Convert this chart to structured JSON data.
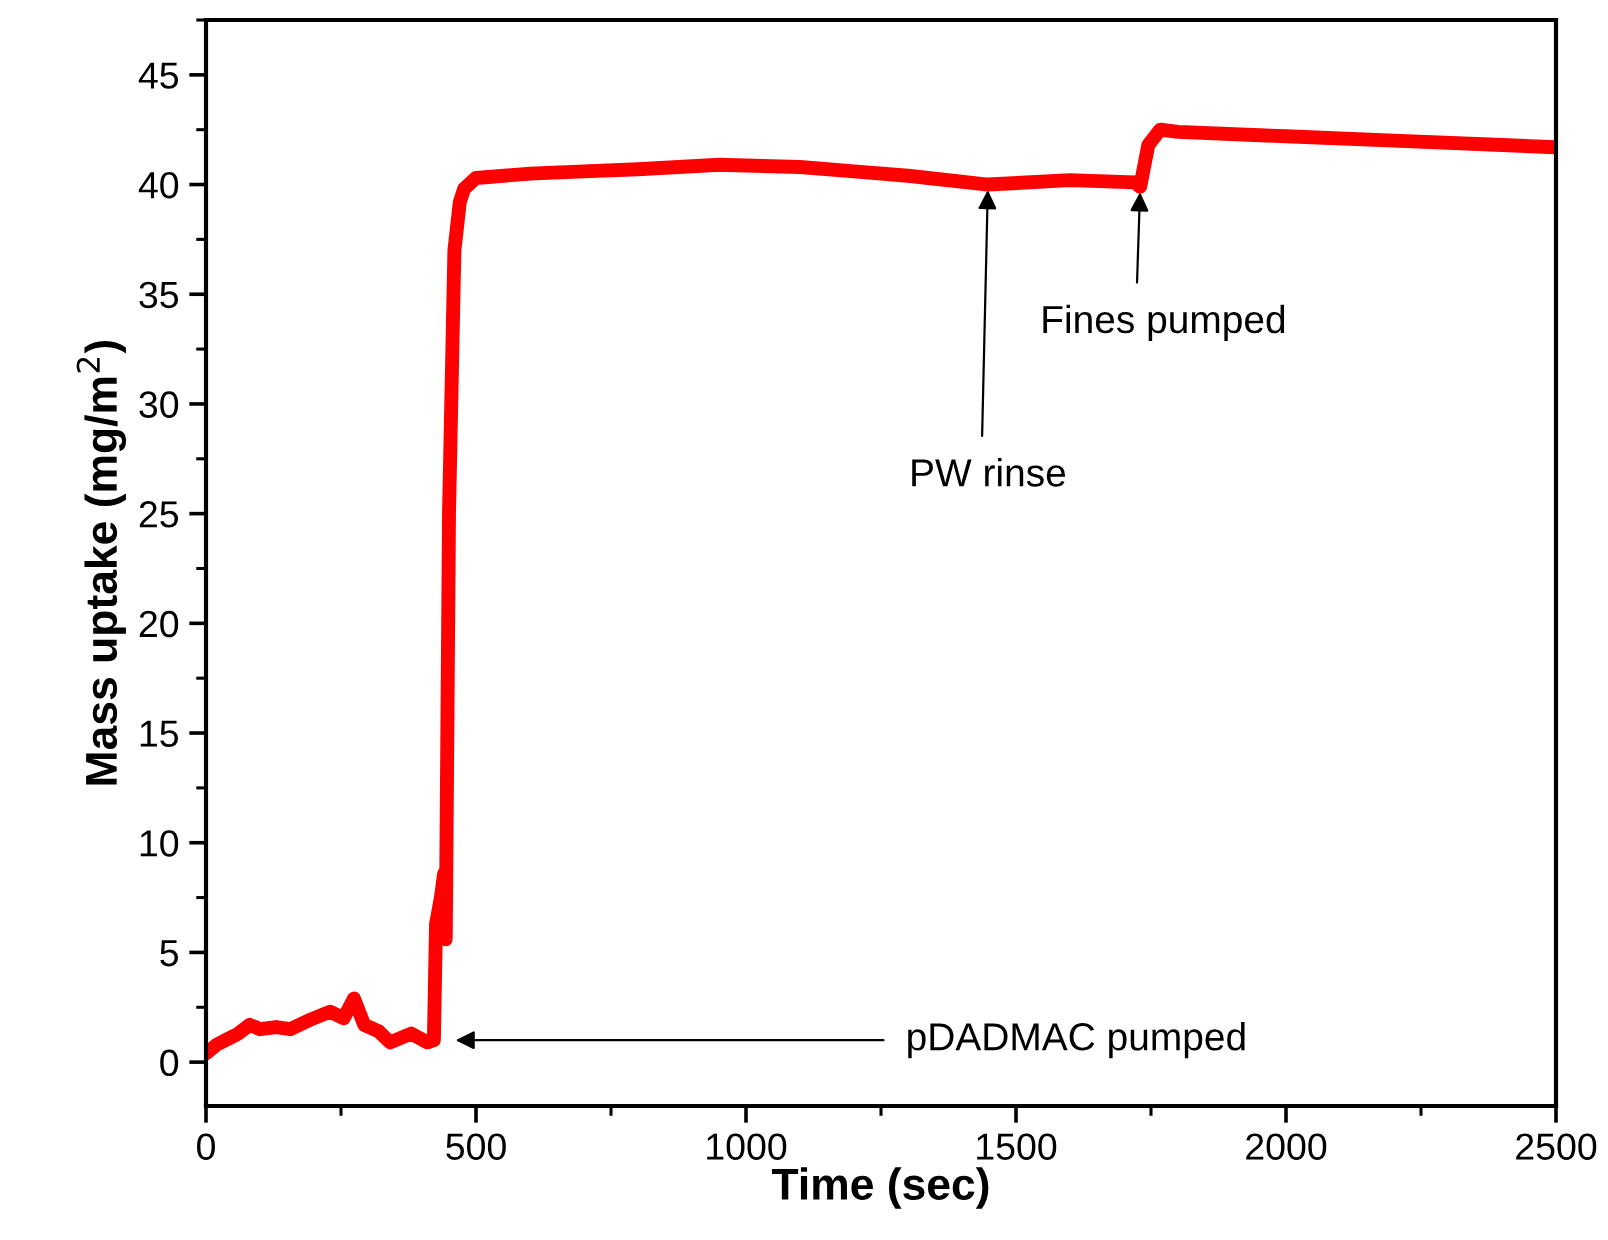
{
  "chart_data": {
    "type": "line",
    "xlabel": "Time (sec)",
    "ylabel": "Mass uptake (mg/m$^{2}$)",
    "xlim": [
      0,
      2500
    ],
    "xticks": [
      0,
      500,
      1000,
      1500,
      2000,
      2500
    ],
    "ylim": [
      -2,
      47.5
    ],
    "yticks": [
      0,
      5,
      10,
      15,
      20,
      25,
      30,
      35,
      40,
      45
    ],
    "grid": false,
    "legend": false,
    "marker": "none",
    "line_style": "solid",
    "series": [
      {
        "color": "#ff0000",
        "x": [
          0,
          20,
          44,
          60,
          81,
          100,
          130,
          156,
          190,
          230,
          255,
          274,
          293,
          320,
          341,
          380,
          410,
          422,
          426,
          435,
          441,
          444,
          450,
          460,
          470,
          478,
          500,
          600,
          700,
          800,
          950,
          1100,
          1200,
          1300,
          1448,
          1600,
          1720,
          1730,
          1745,
          1767,
          1800,
          2000,
          2200,
          2400,
          2500
        ],
        "values": [
          0.4,
          0.8,
          1.1,
          1.3,
          1.7,
          1.5,
          1.6,
          1.5,
          1.9,
          2.3,
          2.0,
          2.9,
          1.7,
          1.4,
          0.9,
          1.3,
          0.9,
          1.0,
          6.3,
          7.5,
          8.6,
          5.6,
          25,
          37,
          39.2,
          39.8,
          40.3,
          40.5,
          40.6,
          40.7,
          40.9,
          40.8,
          40.6,
          40.4,
          40.0,
          40.2,
          40.1,
          39.9,
          41.8,
          42.5,
          42.4,
          42.2,
          42.0,
          41.8,
          41.7
        ]
      }
    ],
    "annotations": [
      {
        "text": "pDADMAC pumped",
        "x": 452,
        "y": 1.0
      },
      {
        "text": "PW rinse",
        "x": 1448,
        "y": 40.0
      },
      {
        "text": "Fines pumped",
        "x": 1730,
        "y": 39.9
      }
    ]
  }
}
